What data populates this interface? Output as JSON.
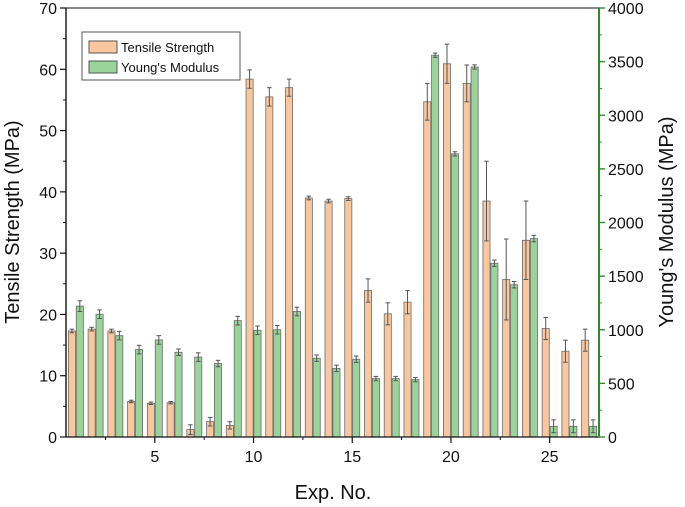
{
  "chart_data": {
    "type": "bar",
    "xlabel": "Exp. No.",
    "ylabel_left": "Tensile Strength (MPa)",
    "ylabel_right": "Young's Modulus (MPa)",
    "x": [
      1,
      2,
      3,
      4,
      5,
      6,
      7,
      8,
      9,
      10,
      11,
      12,
      13,
      14,
      15,
      16,
      17,
      18,
      19,
      20,
      21,
      22,
      23,
      24,
      25,
      26,
      27
    ],
    "xlim": [
      0.5,
      27.5
    ],
    "xticks": [
      5,
      10,
      15,
      20,
      25
    ],
    "ylim_left": [
      0,
      70
    ],
    "yticks_left": [
      0,
      10,
      20,
      30,
      40,
      50,
      60,
      70
    ],
    "ylim_right": [
      0,
      4000
    ],
    "yticks_right": [
      0,
      500,
      1000,
      1500,
      2000,
      2500,
      3000,
      3500,
      4000
    ],
    "legend_position": "top-left",
    "series": [
      {
        "name": "Tensile Strength",
        "axis": "left",
        "color": "#F8C79F",
        "values": [
          17.3,
          17.6,
          17.3,
          5.8,
          5.5,
          5.6,
          1.2,
          2.5,
          1.9,
          58.4,
          55.5,
          57.0,
          39.0,
          38.5,
          38.9,
          23.9,
          20.1,
          22.0,
          54.7,
          60.9,
          57.7,
          38.5,
          25.7,
          32.1,
          17.7,
          14.0,
          15.8
        ],
        "errors": [
          0.3,
          0.3,
          0.3,
          0.2,
          0.2,
          0.2,
          0.8,
          0.7,
          0.6,
          1.5,
          1.5,
          1.4,
          0.3,
          0.3,
          0.3,
          1.9,
          1.8,
          1.9,
          3.0,
          3.2,
          3.0,
          6.5,
          6.6,
          6.4,
          1.8,
          1.8,
          1.8
        ]
      },
      {
        "name": "Young's Modulus",
        "axis": "right",
        "color": "#9AD49A",
        "values": [
          1220,
          1145,
          945,
          815,
          905,
          790,
          745,
          685,
          1085,
          995,
          1000,
          1170,
          735,
          640,
          725,
          545,
          545,
          535,
          3560,
          2640,
          3450,
          1620,
          1420,
          1850,
          100,
          100,
          100
        ],
        "errors": [
          50,
          40,
          40,
          40,
          40,
          30,
          40,
          30,
          40,
          40,
          40,
          40,
          30,
          30,
          30,
          20,
          20,
          20,
          20,
          20,
          20,
          30,
          30,
          30,
          60,
          60,
          60
        ]
      }
    ]
  }
}
